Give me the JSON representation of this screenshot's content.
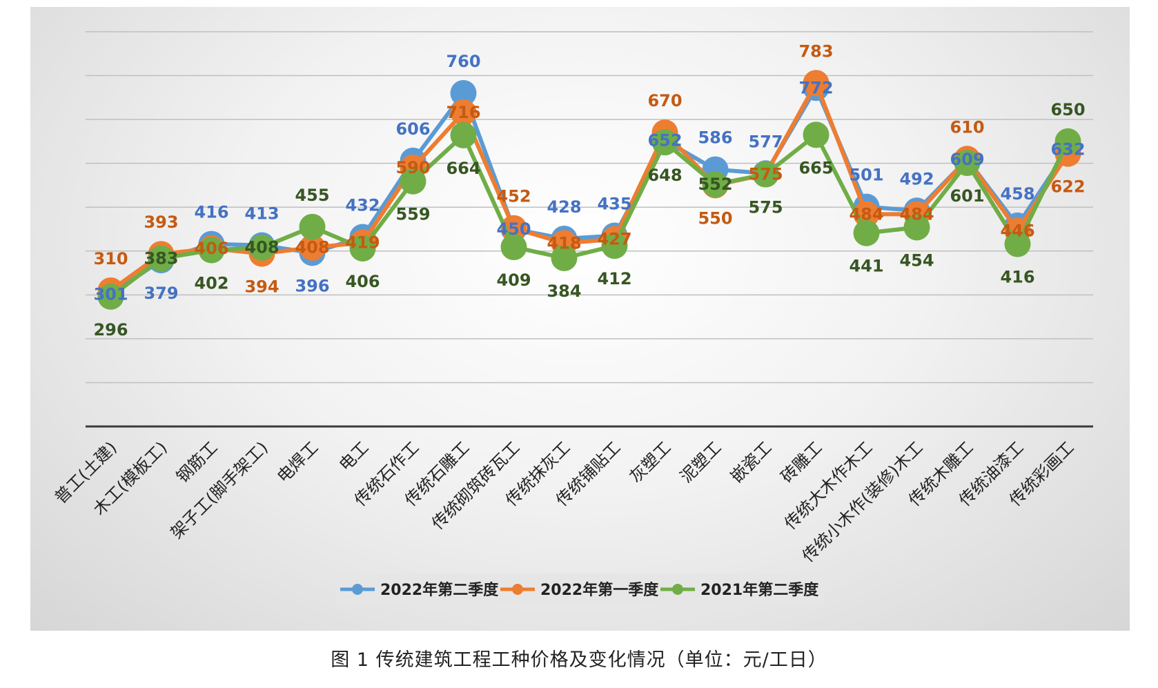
{
  "caption": "图 1   传统建筑工程工种价格及变化情况（单位：元/工日）",
  "chart_data": {
    "type": "line",
    "categories": [
      "普工(土建)",
      "木工(模板工)",
      "钢筋工",
      "架子工(脚手架工)",
      "电焊工",
      "电工",
      "传统石作工",
      "传统石雕工",
      "传统砌筑砖瓦工",
      "传统抹灰工",
      "传统铺贴工",
      "灰塑工",
      "泥塑工",
      "嵌瓷工",
      "砖雕工",
      "传统大木作木工",
      "传统小木作(装修)木工",
      "传统木雕工",
      "传统油漆工",
      "传统彩画工"
    ],
    "series": [
      {
        "name": "2022年第二季度",
        "color": "#5b9bd5",
        "label_color": "#4472c4",
        "values": [
          301,
          379,
          416,
          413,
          396,
          432,
          606,
          760,
          450,
          428,
          435,
          652,
          586,
          577,
          772,
          501,
          492,
          609,
          458,
          632
        ]
      },
      {
        "name": "2022年第一季度",
        "color": "#ed7d31",
        "label_color": "#c55a11",
        "values": [
          310,
          393,
          406,
          394,
          408,
          419,
          590,
          716,
          452,
          418,
          427,
          670,
          550,
          575,
          783,
          484,
          484,
          610,
          446,
          622
        ]
      },
      {
        "name": "2021年第二季度",
        "color": "#70ad47",
        "label_color": "#375623",
        "values": [
          296,
          383,
          402,
          408,
          455,
          406,
          559,
          664,
          409,
          384,
          412,
          648,
          552,
          575,
          665,
          441,
          454,
          601,
          416,
          650
        ]
      }
    ],
    "ylim": [
      0,
      900
    ],
    "grid": true,
    "legend": "bottom"
  }
}
